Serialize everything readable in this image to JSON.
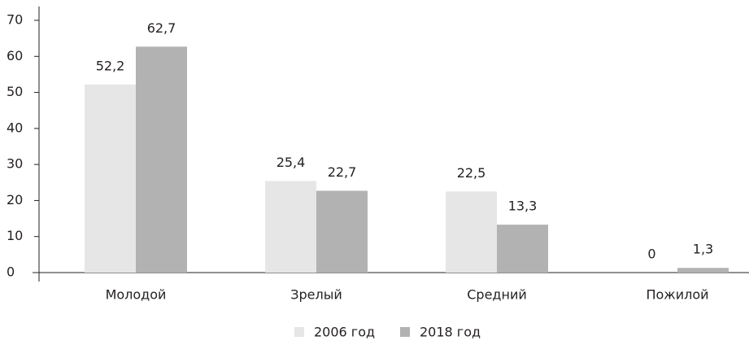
{
  "chart_data": {
    "type": "bar",
    "categories": [
      "Молодой",
      "Зрелый",
      "Средний",
      "Пожилой"
    ],
    "series": [
      {
        "name": "2006 год",
        "color": "#e6e6e6",
        "values": [
          52.2,
          25.4,
          22.5,
          0
        ],
        "value_labels": [
          "52,2",
          "25,4",
          "22,5",
          "0"
        ]
      },
      {
        "name": "2018 год",
        "color": "#b2b2b2",
        "values": [
          62.7,
          22.7,
          13.3,
          1.3
        ],
        "value_labels": [
          "62,7",
          "22,7",
          "13,3",
          "1,3"
        ]
      }
    ],
    "ylim": [
      0,
      70
    ],
    "yticks": [
      0,
      10,
      20,
      30,
      40,
      50,
      60,
      70
    ],
    "grid": false,
    "legend": "bottom"
  }
}
